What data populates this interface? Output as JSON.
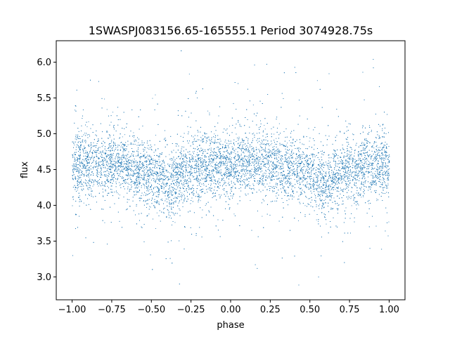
{
  "chart_data": {
    "type": "scatter",
    "title": "1SWASPJ083156.65-165555.1 Period 3074928.75s",
    "xlabel": "phase",
    "ylabel": "flux",
    "xlim": [
      -1.1,
      1.1
    ],
    "ylim": [
      2.68,
      6.3
    ],
    "xticks": [
      -1.0,
      -0.75,
      -0.5,
      -0.25,
      0.0,
      0.25,
      0.5,
      0.75,
      1.0
    ],
    "xtick_labels": [
      "−1.00",
      "−0.75",
      "−0.50",
      "−0.25",
      "0.00",
      "0.25",
      "0.50",
      "0.75",
      "1.00"
    ],
    "yticks": [
      3.0,
      3.5,
      4.0,
      4.5,
      5.0,
      5.5,
      6.0
    ],
    "ytick_labels": [
      "3.0",
      "3.5",
      "4.0",
      "4.5",
      "5.0",
      "5.5",
      "6.0"
    ],
    "grid": false,
    "point_color": "#1f77b4",
    "series": [
      {
        "phase_range": [
          -1.0,
          1.0
        ],
        "mean_flux_profile": [
          {
            "phase": -1.0,
            "flux": 4.55
          },
          {
            "phase": -0.75,
            "flux": 4.62
          },
          {
            "phase": -0.5,
            "flux": 4.45
          },
          {
            "phase": -0.4,
            "flux": 4.3
          },
          {
            "phase": -0.25,
            "flux": 4.5
          },
          {
            "phase": 0.0,
            "flux": 4.58
          },
          {
            "phase": 0.25,
            "flux": 4.6
          },
          {
            "phase": 0.5,
            "flux": 4.45
          },
          {
            "phase": 0.6,
            "flux": 4.3
          },
          {
            "phase": 0.75,
            "flux": 4.5
          },
          {
            "phase": 1.0,
            "flux": 4.58
          }
        ],
        "approx_flux_range": [
          2.85,
          6.2
        ]
      }
    ]
  }
}
